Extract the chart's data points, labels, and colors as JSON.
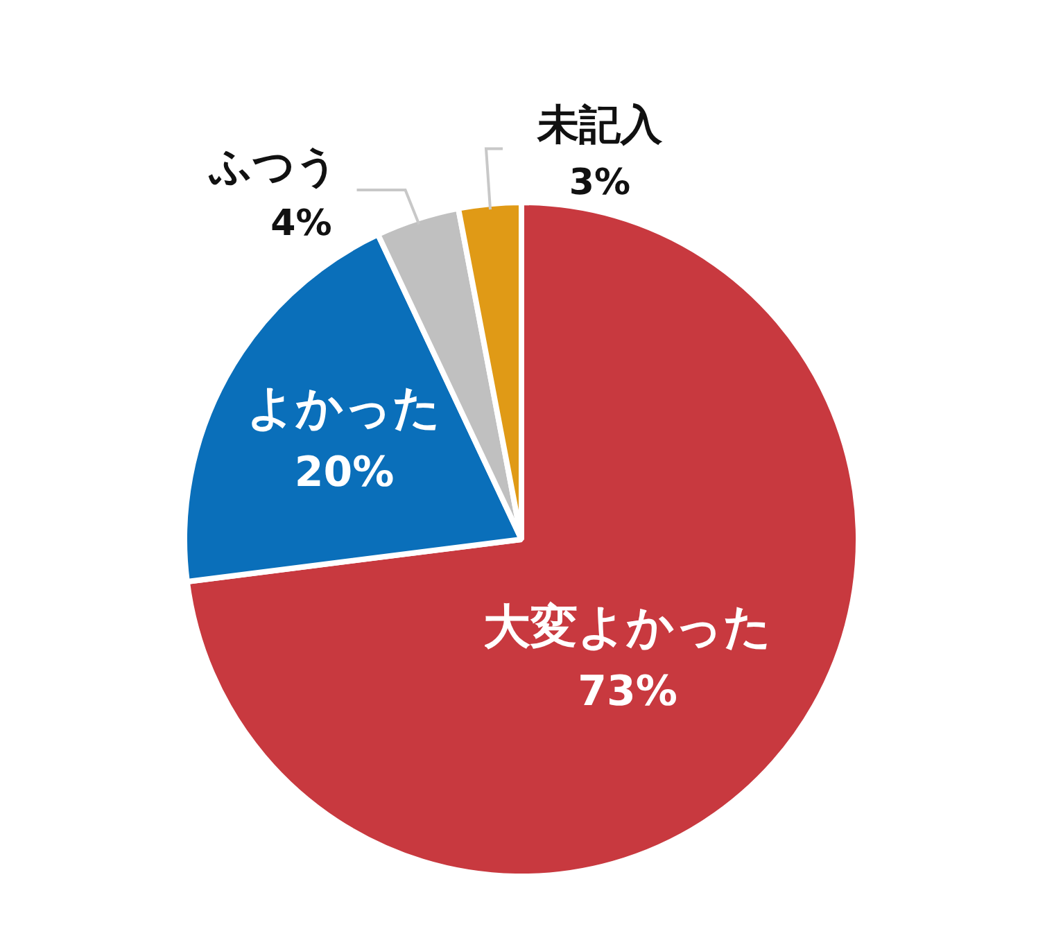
{
  "chart_data": {
    "type": "pie",
    "categories": [
      "大変よかった",
      "よかった",
      "ふつう",
      "未記入"
    ],
    "values": [
      73,
      20,
      4,
      3
    ],
    "colors": [
      "#c8393f",
      "#0a6fba",
      "#c0c0c0",
      "#e09a16"
    ],
    "value_labels": [
      "73%",
      "20%",
      "4%",
      "3%"
    ],
    "legend": false
  }
}
